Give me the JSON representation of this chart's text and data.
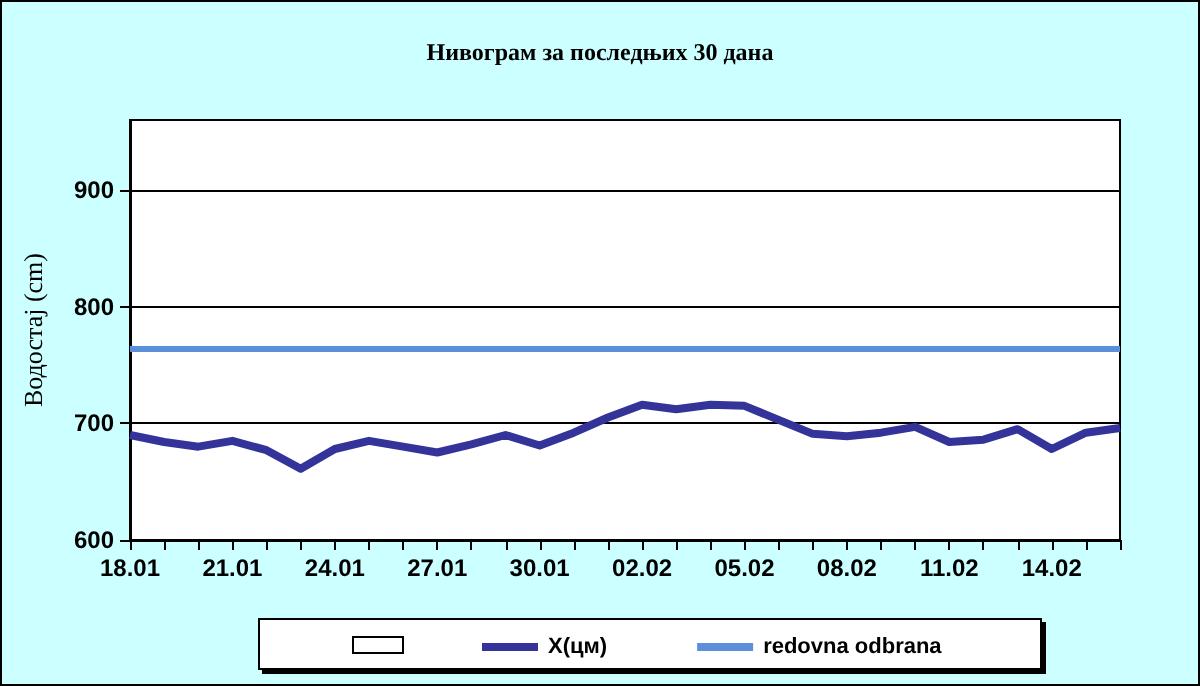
{
  "chart_data": {
    "type": "line",
    "title": "Нивограм за последњих 30 дана",
    "ylabel": "Водостај (cm)",
    "categories": [
      "18.01",
      null,
      null,
      "21.01",
      null,
      null,
      "24.01",
      null,
      null,
      "27.01",
      null,
      null,
      "30.01",
      null,
      null,
      "02.02",
      null,
      null,
      "05.02",
      null,
      null,
      "08.02",
      null,
      null,
      "11.02",
      null,
      null,
      "14.02",
      null,
      null
    ],
    "series": [
      {
        "name": "X(цм)",
        "color": "#333399",
        "values": [
          690,
          684,
          680,
          685,
          677,
          661,
          678,
          685,
          680,
          675,
          682,
          690,
          681,
          692,
          705,
          716,
          712,
          716,
          715,
          703,
          691,
          689,
          692,
          697,
          684,
          686,
          695,
          678,
          692,
          696
        ]
      }
    ],
    "ylim": [
      600,
      960
    ],
    "yticks": [
      600,
      700,
      800,
      900
    ],
    "grid": "y",
    "legend": "bottom",
    "marker": "none",
    "line_style": "solid",
    "ref_lines": [
      {
        "axis": "y",
        "value": 765,
        "label": "redovna odbrana",
        "color": "#5b8fd9"
      }
    ]
  }
}
